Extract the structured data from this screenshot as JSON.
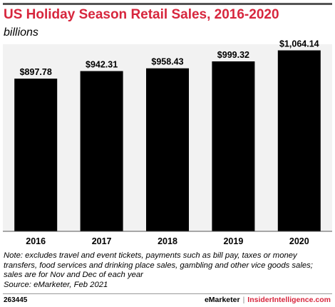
{
  "header": {
    "title": "US Holiday Season Retail Sales, 2016-2020",
    "subtitle": "billions"
  },
  "footer": {
    "note": "Note: excludes travel and event tickets, payments such as bill pay, taxes or money transfers, food services and drinking place sales, gambling and other vice goods sales; sales are for Nov and Dec of each year",
    "source": "Source: eMarketer, Feb 2021",
    "chart_id": "263445",
    "brand_left": "eMarketer",
    "brand_sep": "|",
    "brand_right": "InsiderIntelligence.com"
  },
  "colors": {
    "title": "#d7263d",
    "bars": "#000000",
    "plot_background": "#f2f2f2"
  },
  "chart_data": {
    "type": "bar",
    "title": "US Holiday Season Retail Sales, 2016-2020",
    "subtitle": "billions",
    "categories": [
      "2016",
      "2017",
      "2018",
      "2019",
      "2020"
    ],
    "values": [
      897.78,
      942.31,
      958.43,
      999.32,
      1064.14
    ],
    "value_labels": [
      "$897.78",
      "$942.31",
      "$958.43",
      "$999.32",
      "$1,064.14"
    ],
    "xlabel": "",
    "ylabel": "",
    "ylim": [
      0,
      1100
    ],
    "grid": false,
    "legend": "none"
  }
}
